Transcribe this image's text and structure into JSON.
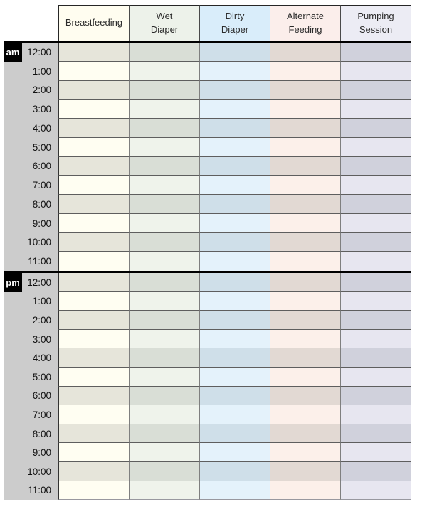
{
  "page": {
    "background": "#ffffff"
  },
  "table": {
    "columns": [
      {
        "id": "breastfeeding",
        "label": "Breastfeeding",
        "header_bg": "#fffdf0",
        "row_light": "#fffef2",
        "row_dark": "#e6e5da"
      },
      {
        "id": "wet-diaper",
        "label": "Wet\nDiaper",
        "header_bg": "#edf2ea",
        "row_light": "#eff3eb",
        "row_dark": "#d9ded6"
      },
      {
        "id": "dirty-diaper",
        "label": "Dirty\nDiaper",
        "header_bg": "#d9edfa",
        "row_light": "#e4f2fb",
        "row_dark": "#cfdfe9"
      },
      {
        "id": "alternate-feeding",
        "label": "Alternate\nFeeding",
        "header_bg": "#fbeeeb",
        "row_light": "#fcf0ea",
        "row_dark": "#e2d9d3"
      },
      {
        "id": "pumping-session",
        "label": "Pumping\nSession",
        "header_bg": "#ececf4",
        "row_light": "#e7e6f0",
        "row_dark": "#d0d1dc"
      }
    ],
    "sections": [
      {
        "badge": "am",
        "times": [
          "12:00",
          "1:00",
          "2:00",
          "3:00",
          "4:00",
          "5:00",
          "6:00",
          "7:00",
          "8:00",
          "9:00",
          "10:00",
          "11:00"
        ]
      },
      {
        "badge": "pm",
        "times": [
          "12:00",
          "1:00",
          "2:00",
          "3:00",
          "4:00",
          "5:00",
          "6:00",
          "7:00",
          "8:00",
          "9:00",
          "10:00",
          "11:00"
        ]
      }
    ],
    "colors": {
      "time_column_bg": "#cccccc",
      "badge_bg": "#000000",
      "badge_text": "#ffffff",
      "row_divider": "#5e5e5e",
      "column_divider": "#7f7f7f",
      "header_border": "#262626",
      "thick_divider": "#000000",
      "outer_right": "#8a8a8a",
      "outer_bottom": "#98989f",
      "text": "#1a1a1a"
    }
  }
}
